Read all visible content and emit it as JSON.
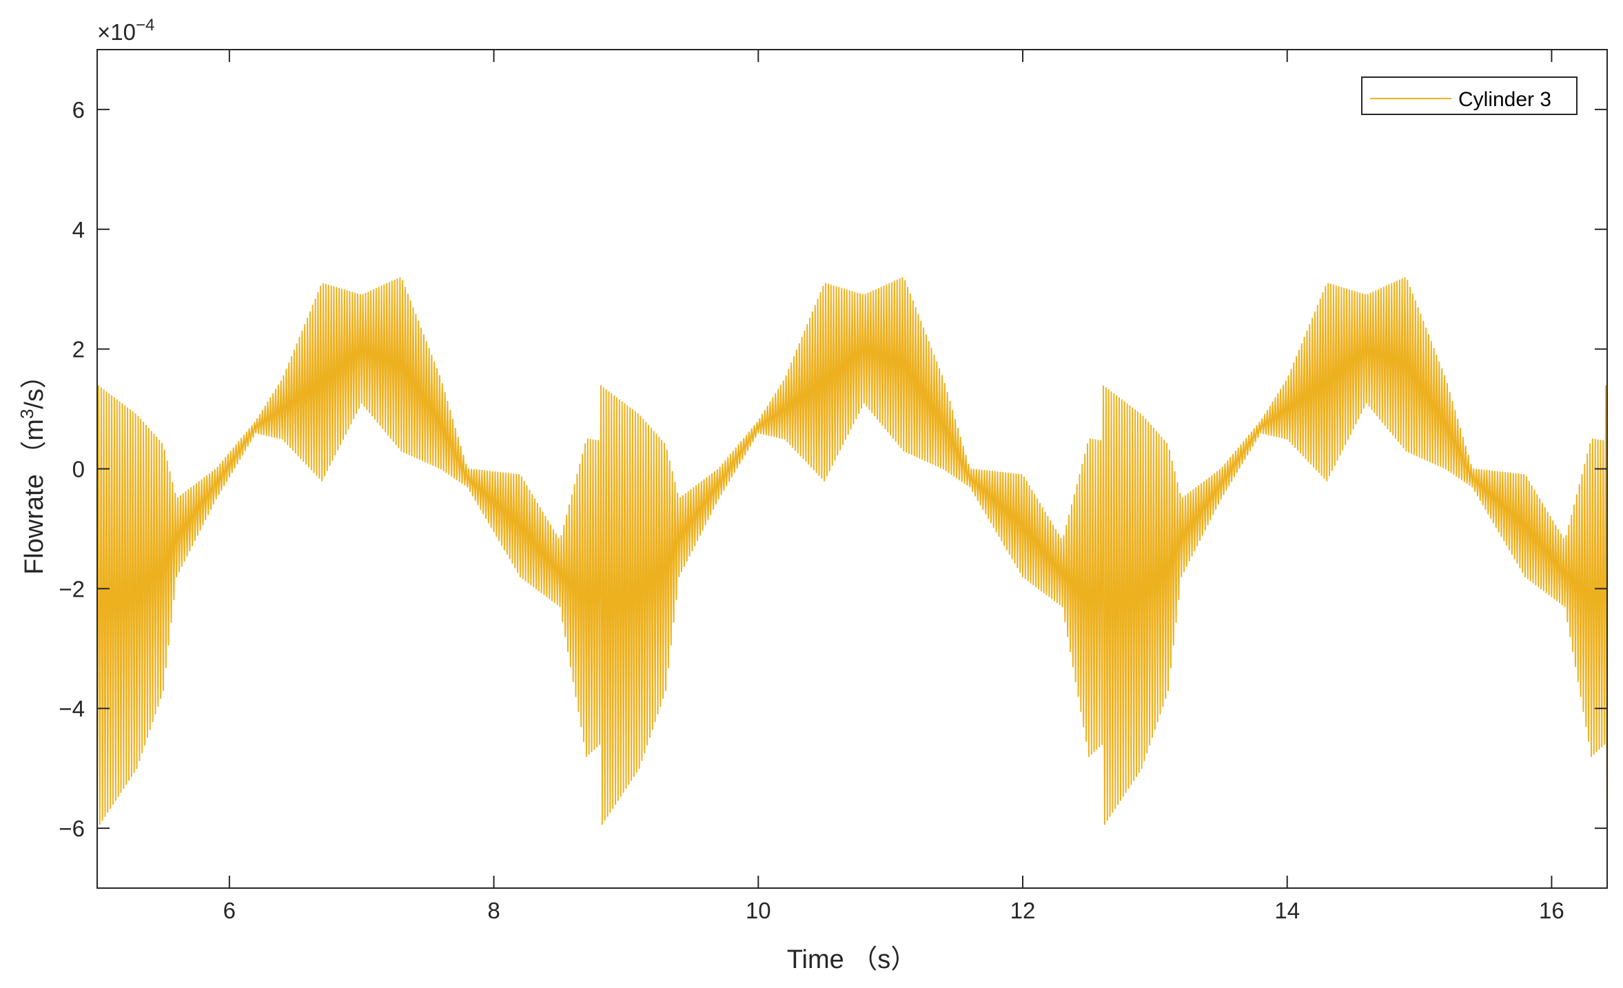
{
  "chart_data": {
    "type": "line",
    "xlabel": "Time （s）",
    "ylabel_parts": {
      "before": "Flowrate （m",
      "sup": "3",
      "after": "/s）"
    },
    "y_exponent_base": "×10",
    "y_exponent": "−4",
    "xlim": [
      5,
      16.42
    ],
    "ylim": [
      -7,
      7
    ],
    "xticks": [
      6,
      8,
      10,
      12,
      14,
      16
    ],
    "yticks": [
      -6,
      -4,
      -2,
      0,
      2,
      4,
      6
    ],
    "xtick_labels": [
      "6",
      "8",
      "10",
      "12",
      "14",
      "16"
    ],
    "ytick_labels": [
      "−6",
      "−4",
      "−2",
      "0",
      "2",
      "4",
      "6"
    ],
    "grid": false,
    "legend_position": "top-right",
    "line_color": "#EDB120",
    "series": [
      {
        "name": "Cylinder 3",
        "color": "#EDB120",
        "period_s": 3.8,
        "oscillation_frequency_hz": 50,
        "description_note_omitted": true,
        "envelope_points": [
          {
            "x": 5.0,
            "upper": 1.4,
            "lower": -6.0
          },
          {
            "x": 5.3,
            "upper": 0.9,
            "lower": -5.0
          },
          {
            "x": 5.5,
            "upper": 0.4,
            "lower": -3.7
          },
          {
            "x": 5.6,
            "upper": -0.5,
            "lower": -1.8
          },
          {
            "x": 5.9,
            "upper": 0.0,
            "lower": -0.5
          },
          {
            "x": 6.2,
            "upper": 0.8,
            "lower": 0.6
          },
          {
            "x": 6.4,
            "upper": 1.5,
            "lower": 0.5
          },
          {
            "x": 6.7,
            "upper": 3.1,
            "lower": -0.2
          },
          {
            "x": 7.0,
            "upper": 2.9,
            "lower": 1.1
          },
          {
            "x": 7.3,
            "upper": 3.2,
            "lower": 0.3
          },
          {
            "x": 7.6,
            "upper": 1.5,
            "lower": 0.0
          },
          {
            "x": 7.8,
            "upper": 0.0,
            "lower": -0.3
          },
          {
            "x": 8.2,
            "upper": -0.1,
            "lower": -1.8
          },
          {
            "x": 8.5,
            "upper": -1.2,
            "lower": -2.3
          },
          {
            "x": 8.7,
            "upper": 0.5,
            "lower": -4.8
          },
          {
            "x": 9.0,
            "upper": 0.4,
            "lower": -4.2
          },
          {
            "x": 9.4,
            "upper": -0.3,
            "lower": -1.5
          },
          {
            "x": 9.7,
            "upper": 0.0,
            "lower": -0.5
          },
          {
            "x": 10.0,
            "upper": 0.8,
            "lower": 0.6
          }
        ]
      }
    ]
  }
}
